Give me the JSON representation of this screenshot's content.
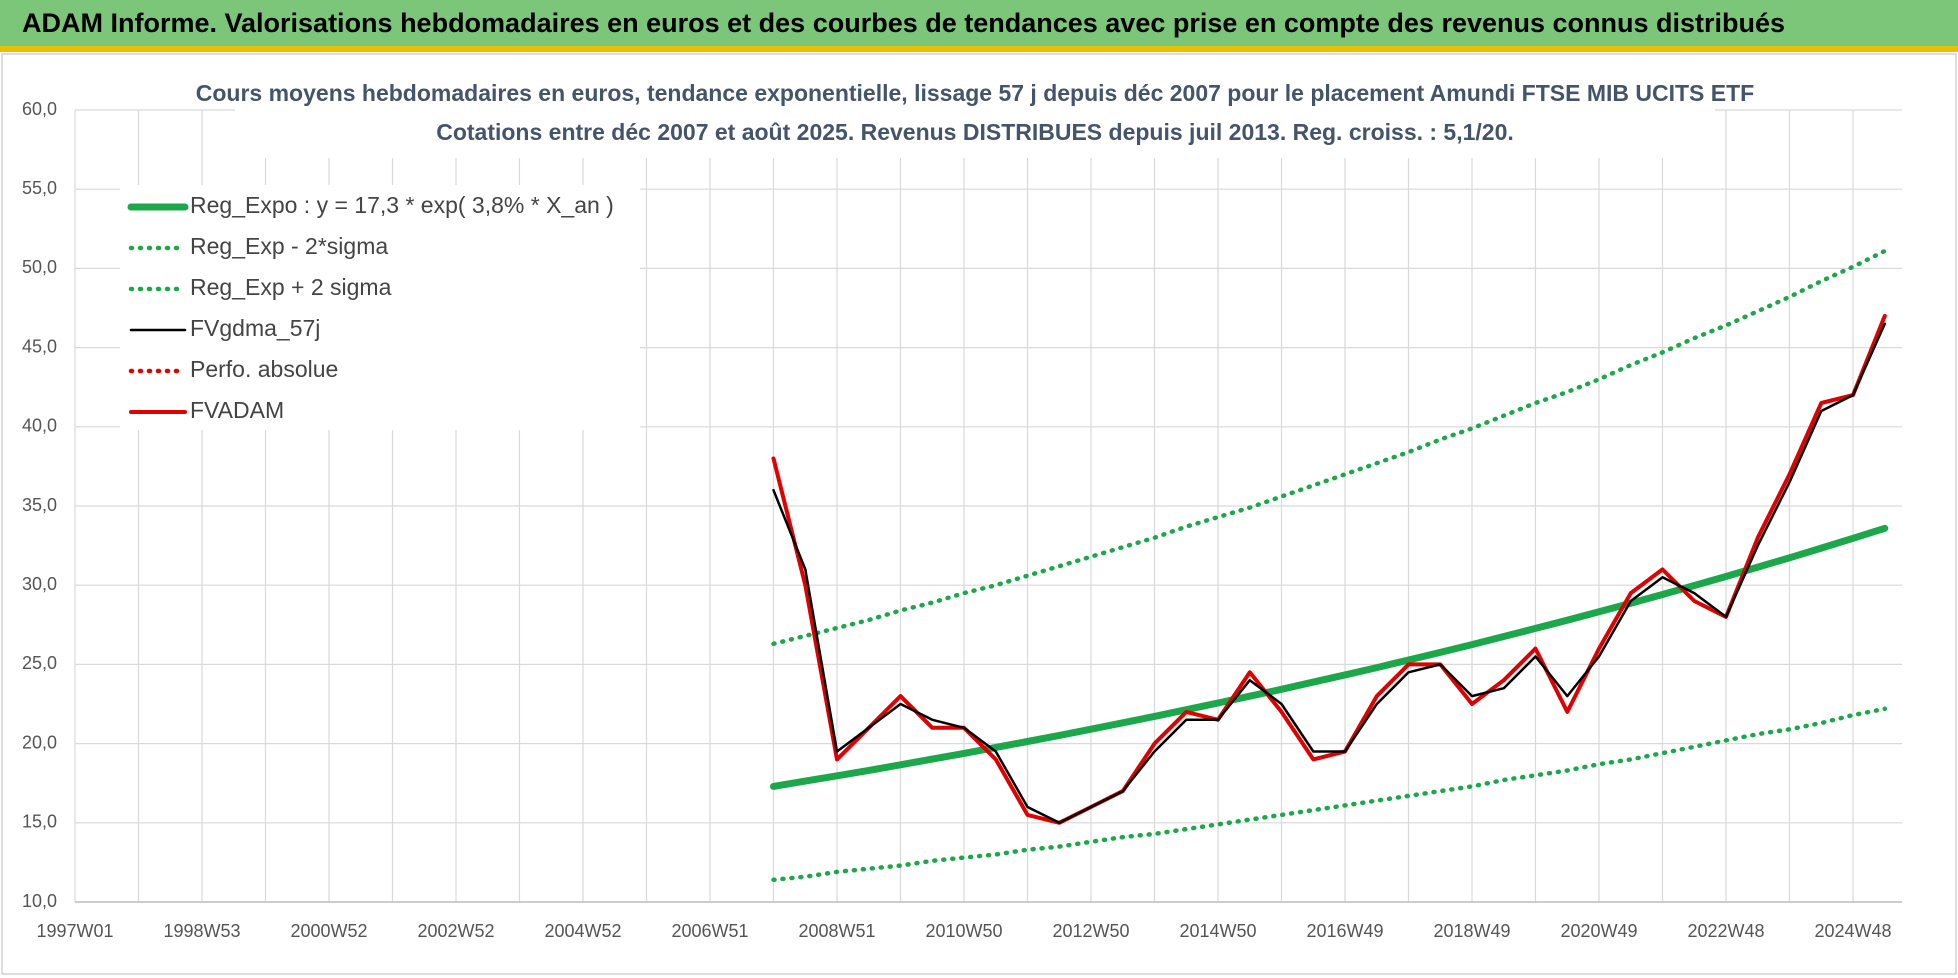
{
  "header": {
    "title": "ADAM Informe. Valorisations hebdomadaires en euros et des courbes de tendances avec prise en compte des revenus connus distribués"
  },
  "chart_data": {
    "type": "line",
    "title": "Cours moyens hebdomadaires en euros, tendance exponentielle, lissage 57 j depuis déc 2007 pour le placement Amundi FTSE MIB  UCITS ETF",
    "subtitle": "Cotations entre déc 2007 et août 2025. Revenus DISTRIBUES depuis juil 2013. Reg. croiss. : 5,1/20.",
    "categories": [
      "1997W01",
      null,
      null,
      null,
      "1998W53",
      null,
      null,
      null,
      "2000W52",
      null,
      null,
      null,
      "2002W52",
      null,
      null,
      null,
      "2004W52",
      null,
      null,
      null,
      "2006W51",
      null,
      null,
      null,
      "2008W51",
      null,
      null,
      null,
      "2010W50",
      null,
      null,
      null,
      "2012W50",
      null,
      null,
      null,
      "2014W50",
      null,
      null,
      null,
      "2016W49",
      null,
      null,
      null,
      "2018W49",
      null,
      null,
      null,
      "2020W49",
      null,
      null,
      null,
      "2022W48",
      null,
      null,
      null,
      "2024W48",
      null
    ],
    "series": [
      {
        "name": "Reg_Expo : y = 17,3 * exp( 3,8% *  X_an )",
        "color": "#1ca84a",
        "style": "solid",
        "values": [
          null,
          null,
          null,
          null,
          null,
          null,
          null,
          null,
          null,
          null,
          null,
          null,
          null,
          null,
          null,
          null,
          null,
          null,
          null,
          null,
          null,
          null,
          17.3,
          17.63,
          17.97,
          18.31,
          18.66,
          19.02,
          19.38,
          19.76,
          20.13,
          20.52,
          20.91,
          21.31,
          21.72,
          22.14,
          22.56,
          22.99,
          23.43,
          23.88,
          24.34,
          24.8,
          25.28,
          25.76,
          26.25,
          26.76,
          27.27,
          27.79,
          28.32,
          28.86,
          29.41,
          29.98,
          30.55,
          31.14,
          31.73,
          32.34,
          32.96,
          33.59
        ]
      },
      {
        "name": "Reg_Exp - 2*sigma",
        "color": "#1ca84a",
        "style": "dotted",
        "values": [
          null,
          null,
          null,
          null,
          null,
          null,
          null,
          null,
          null,
          null,
          null,
          null,
          null,
          null,
          null,
          null,
          null,
          null,
          null,
          null,
          null,
          null,
          11.4,
          11.6,
          11.9,
          12.1,
          12.3,
          12.6,
          12.8,
          13.0,
          13.3,
          13.5,
          13.8,
          14.1,
          14.3,
          14.6,
          14.9,
          15.2,
          15.5,
          15.8,
          16.1,
          16.4,
          16.7,
          17.0,
          17.3,
          17.7,
          18.0,
          18.3,
          18.7,
          19.0,
          19.4,
          19.8,
          20.2,
          20.6,
          20.9,
          21.3,
          21.8,
          22.2
        ]
      },
      {
        "name": "Reg_Exp + 2 sigma",
        "color": "#1ca84a",
        "style": "dotted",
        "values": [
          null,
          null,
          null,
          null,
          null,
          null,
          null,
          null,
          null,
          null,
          null,
          null,
          null,
          null,
          null,
          null,
          null,
          null,
          null,
          null,
          null,
          null,
          26.3,
          26.8,
          27.3,
          27.8,
          28.4,
          28.9,
          29.5,
          30.0,
          30.6,
          31.2,
          31.8,
          32.4,
          33.0,
          33.7,
          34.3,
          34.9,
          35.6,
          36.3,
          37.0,
          37.7,
          38.4,
          39.2,
          39.9,
          40.7,
          41.5,
          42.2,
          43.0,
          43.9,
          44.7,
          45.6,
          46.4,
          47.3,
          48.2,
          49.2,
          50.1,
          51.1
        ]
      },
      {
        "name": "FVgdma_57j",
        "color": "#000000",
        "style": "solid",
        "values": [
          null,
          null,
          null,
          null,
          null,
          null,
          null,
          null,
          null,
          null,
          null,
          null,
          null,
          null,
          null,
          null,
          null,
          null,
          null,
          null,
          null,
          null,
          36,
          31,
          19.5,
          21,
          22.5,
          21.5,
          21,
          19.5,
          16,
          15,
          16,
          17,
          19.5,
          21.5,
          21.5,
          24,
          22.5,
          19.5,
          19.5,
          22.5,
          24.5,
          25,
          23,
          23.5,
          25.5,
          23,
          25.5,
          29,
          30.5,
          29.5,
          28,
          32.5,
          36.5,
          41,
          42,
          46.5
        ]
      },
      {
        "name": "Perfo. absolue",
        "color": "#e00000",
        "style": "dotted",
        "values": [
          null,
          null,
          null,
          null,
          null,
          null,
          null,
          null,
          null,
          null,
          null,
          null,
          null,
          null,
          null,
          null,
          null,
          null,
          null,
          null,
          null,
          null,
          null,
          null,
          null,
          null,
          null,
          null,
          null,
          null,
          null,
          null,
          null,
          null,
          null,
          null,
          null,
          null,
          null,
          null,
          null,
          null,
          null,
          null,
          null,
          null,
          null,
          null,
          null,
          null,
          null,
          null,
          null,
          null,
          null,
          null,
          null,
          null
        ]
      },
      {
        "name": "FVADAM",
        "color": "#e00000",
        "style": "solid",
        "values": [
          null,
          null,
          null,
          null,
          null,
          null,
          null,
          null,
          null,
          null,
          null,
          null,
          null,
          null,
          null,
          null,
          null,
          null,
          null,
          null,
          null,
          null,
          38,
          30,
          19,
          21,
          23,
          21,
          21,
          19,
          15.5,
          15,
          16,
          17,
          20,
          22,
          21.5,
          24.5,
          22,
          19,
          19.5,
          23,
          25,
          25,
          22.5,
          24,
          26,
          22,
          26,
          29.5,
          31,
          29,
          28,
          33,
          37,
          41.5,
          42,
          47
        ]
      }
    ],
    "ylim": [
      10,
      60
    ],
    "yticks": [
      {
        "value": 10,
        "label": "10,0"
      },
      {
        "value": 15,
        "label": "15,0"
      },
      {
        "value": 20,
        "label": "20,0"
      },
      {
        "value": 25,
        "label": "25,0"
      },
      {
        "value": 30,
        "label": "30,0"
      },
      {
        "value": 35,
        "label": "35,0"
      },
      {
        "value": 40,
        "label": "40,0"
      },
      {
        "value": 45,
        "label": "45,0"
      },
      {
        "value": 50,
        "label": "50,0"
      },
      {
        "value": 55,
        "label": "55,0"
      },
      {
        "value": 60,
        "label": "60,0"
      }
    ],
    "grid": true
  }
}
